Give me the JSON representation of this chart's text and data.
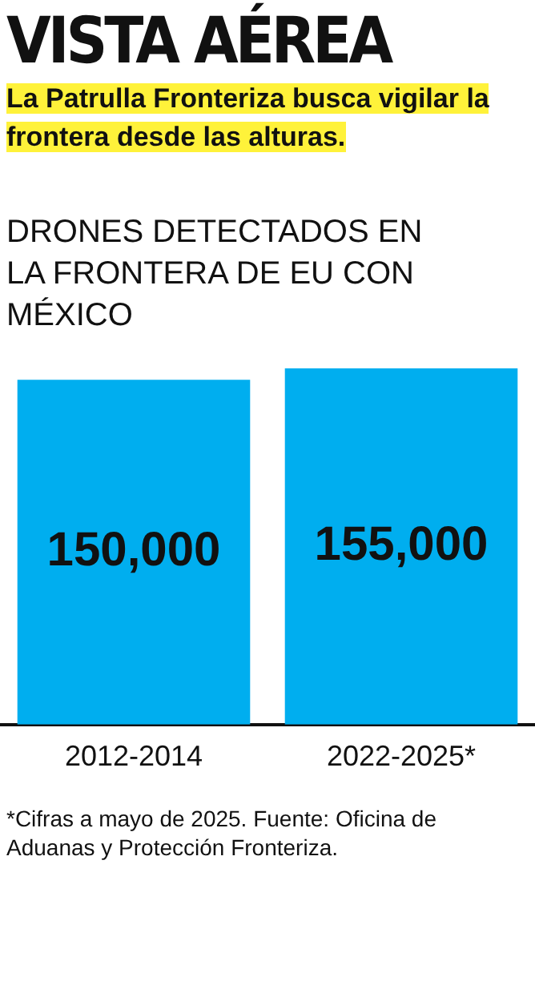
{
  "chart_data": {
    "type": "bar",
    "title": "VISTA AÉREA",
    "subtitle": "La Patrulla Fronteriza busca vigilar la frontera desde las alturas.",
    "ylabel": "DRONES DETECTADOS EN LA FRONTERA DE EU CON MÉXICO",
    "categories": [
      "2012-2014",
      "2022-2025*"
    ],
    "values": [
      150000,
      155000
    ],
    "color": "#00aeef",
    "value_labels": [
      "150,000",
      "155,000"
    ],
    "grid": false,
    "legend": false,
    "annotations": [
      "*Cifras a mayo de 2025. Fuente: Oficina de Aduanas y Protección Fronteriza."
    ]
  }
}
